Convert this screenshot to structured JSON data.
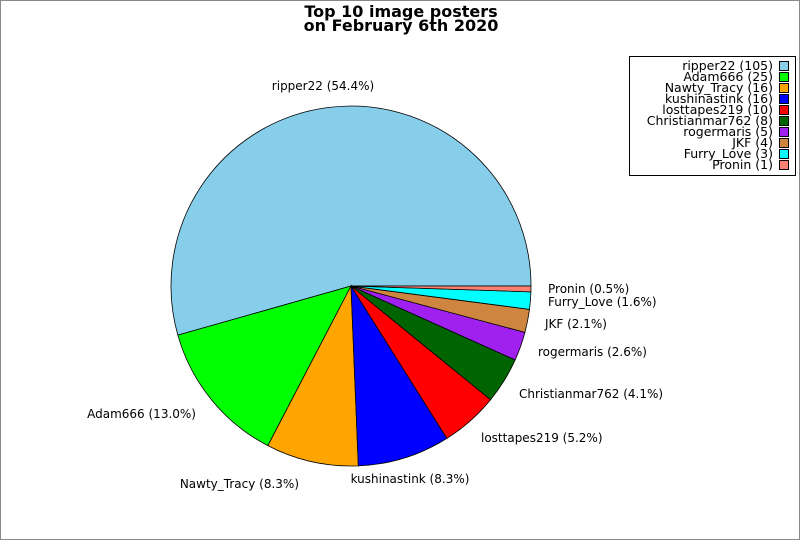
{
  "chart_data": {
    "type": "pie",
    "title_line1": "Top 10 image posters",
    "title_line2": "on February 6th 2020",
    "slices": [
      {
        "name": "ripper22",
        "count": 105,
        "percent": 54.4,
        "legend": "ripper22 (105)",
        "label": "ripper22 (54.4%)",
        "color": "#87CEEB"
      },
      {
        "name": "Adam666",
        "count": 25,
        "percent": 13.0,
        "legend": "Adam666 (25)",
        "label": "Adam666 (13.0%)",
        "color": "#00FF00"
      },
      {
        "name": "Nawty_Tracy",
        "count": 16,
        "percent": 8.3,
        "legend": "Nawty_Tracy (16)",
        "label": "Nawty_Tracy (8.3%)",
        "color": "#FFA500"
      },
      {
        "name": "kushinastink",
        "count": 16,
        "percent": 8.3,
        "legend": "kushinastink (16)",
        "label": "kushinastink (8.3%)",
        "color": "#0000FF"
      },
      {
        "name": "losttapes219",
        "count": 10,
        "percent": 5.2,
        "legend": "losttapes219 (10)",
        "label": "losttapes219 (5.2%)",
        "color": "#FF0000"
      },
      {
        "name": "Christianmar762",
        "count": 8,
        "percent": 4.1,
        "legend": "Christianmar762 (8)",
        "label": "Christianmar762 (4.1%)",
        "color": "#006400"
      },
      {
        "name": "rogermaris",
        "count": 5,
        "percent": 2.6,
        "legend": "rogermaris (5)",
        "label": "rogermaris (2.6%)",
        "color": "#A020F0"
      },
      {
        "name": "JKF",
        "count": 4,
        "percent": 2.1,
        "legend": "JKF (4)",
        "label": "JKF (2.1%)",
        "color": "#CD853F"
      },
      {
        "name": "Furry_Love",
        "count": 3,
        "percent": 1.6,
        "legend": "Furry_Love (3)",
        "label": "Furry_Love (1.6%)",
        "color": "#00FFFF"
      },
      {
        "name": "Pronin",
        "count": 1,
        "percent": 0.5,
        "legend": "Pronin (1)",
        "label": "Pronin (0.5%)",
        "color": "#FA8072"
      }
    ],
    "legend_position": "top-right"
  }
}
